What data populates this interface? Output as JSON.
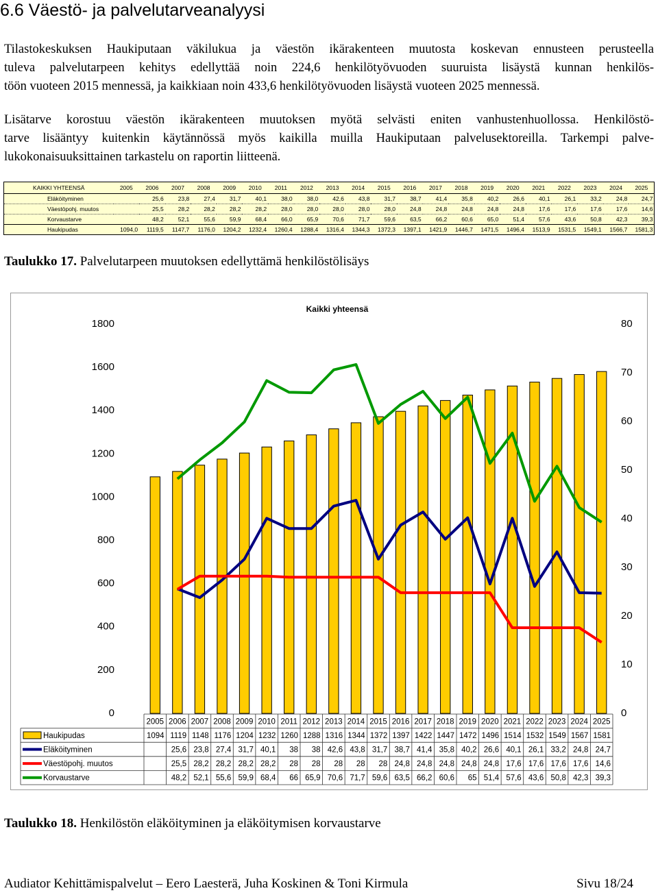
{
  "heading": "6.6 Väestö- ja palvelutarveanalyysi",
  "paragraphs": [
    [
      "Tilastokeskuksen Haukiputaan väkilukua ja väestön ikärakenteen muutosta koskevan ennusteen perusteella",
      "tuleva palvelutarpeen kehitys edellyttää noin 224,6 henkilötyövuoden suuruista lisäystä kunnan henkilös-",
      "töön vuoteen 2015 mennessä, ja kaikkiaan noin 433,6 henkilötyövuoden lisäystä vuoteen 2025 mennessä."
    ],
    [
      "Lisätarve korostuu väestön ikärakenteen muutoksen myötä selvästi eniten vanhustenhuollossa. Henkilöstö-",
      "tarve lisääntyy kuitenkin käytännössä myös kaikilla muilla Haukiputaan palvelusektoreilla. Tarkempi palve-",
      "lukokonaisuuksittainen tarkastelu on raportin liitteenä."
    ]
  ],
  "table": {
    "header": [
      "KAIKKI YHTEENSÄ",
      "2005",
      "2006",
      "2007",
      "2008",
      "2009",
      "2010",
      "2011",
      "2012",
      "2013",
      "2014",
      "2015",
      "2016",
      "2017",
      "2018",
      "2019",
      "2020",
      "2021",
      "2022",
      "2023",
      "2024",
      "2025"
    ],
    "rows": [
      [
        "Eläköityminen",
        null,
        "25,6",
        "23,8",
        "27,4",
        "31,7",
        "40,1",
        "38,0",
        "38,0",
        "42,6",
        "43,8",
        "31,7",
        "38,7",
        "41,4",
        "35,8",
        "40,2",
        "26,6",
        "40,1",
        "26,1",
        "33,2",
        "24,8",
        "24,7"
      ],
      [
        "Väestöpohj. muutos",
        null,
        "25,5",
        "28,2",
        "28,2",
        "28,2",
        "28,2",
        "28,0",
        "28,0",
        "28,0",
        "28,0",
        "28,0",
        "24,8",
        "24,8",
        "24,8",
        "24,8",
        "24,8",
        "17,6",
        "17,6",
        "17,6",
        "17,6",
        "14,6"
      ],
      [
        "Korvaustarve",
        null,
        "48,2",
        "52,1",
        "55,6",
        "59,9",
        "68,4",
        "66,0",
        "65,9",
        "70,6",
        "71,7",
        "59,6",
        "63,5",
        "66,2",
        "60,6",
        "65,0",
        "51,4",
        "57,6",
        "43,6",
        "50,8",
        "42,3",
        "39,3"
      ],
      [
        "Haukipudas",
        "1094,0",
        "1119,5",
        "1147,7",
        "1176,0",
        "1204,2",
        "1232,4",
        "1260,4",
        "1288,4",
        "1316,4",
        "1344,3",
        "1372,3",
        "1397,1",
        "1421,9",
        "1446,7",
        "1471,5",
        "1496,4",
        "1513,9",
        "1531,5",
        "1549,1",
        "1566,7",
        "1581,3"
      ]
    ]
  },
  "caption1": {
    "label": "Taulukko 17.",
    "text": "Palvelutarpeen muutoksen edellyttämä henkilöstölisäys"
  },
  "chart_data": {
    "type": "combo",
    "title": "Kaikki yhteensä",
    "categories": [
      "2005",
      "2006",
      "2007",
      "2008",
      "2009",
      "2010",
      "2011",
      "2012",
      "2013",
      "2014",
      "2015",
      "2016",
      "2017",
      "2018",
      "2019",
      "2020",
      "2021",
      "2022",
      "2023",
      "2024",
      "2025"
    ],
    "series": [
      {
        "name": "Haukipudas",
        "type": "bar",
        "color": "#ffcc00",
        "values": [
          1094,
          1119,
          1148,
          1176,
          1204,
          1232,
          1260,
          1288,
          1316,
          1344,
          1372,
          1397,
          1422,
          1447,
          1472,
          1496,
          1514,
          1532,
          1549,
          1567,
          1581
        ]
      },
      {
        "name": "Eläköityminen",
        "type": "line",
        "axis": "y2",
        "color": "#000080",
        "values": [
          null,
          25.6,
          23.8,
          27.4,
          31.7,
          40.1,
          38,
          38,
          42.6,
          43.8,
          31.7,
          38.7,
          41.4,
          35.8,
          40.2,
          26.6,
          40.1,
          26.1,
          33.2,
          24.8,
          24.7
        ],
        "value_labels": [
          null,
          "25,6",
          "23,8",
          "27,4",
          "31,7",
          "40,1",
          "38",
          "38",
          "42,6",
          "43,8",
          "31,7",
          "38,7",
          "41,4",
          "35,8",
          "40,2",
          "26,6",
          "40,1",
          "26,1",
          "33,2",
          "24,8",
          "24,7"
        ]
      },
      {
        "name": "Väestöpohj. muutos",
        "type": "line",
        "axis": "y2",
        "color": "#ff0000",
        "values": [
          null,
          25.5,
          28.2,
          28.2,
          28.2,
          28.2,
          28,
          28,
          28,
          28,
          28,
          24.8,
          24.8,
          24.8,
          24.8,
          24.8,
          17.6,
          17.6,
          17.6,
          17.6,
          14.6
        ],
        "value_labels": [
          null,
          "25,5",
          "28,2",
          "28,2",
          "28,2",
          "28,2",
          "28",
          "28",
          "28",
          "28",
          "28",
          "24,8",
          "24,8",
          "24,8",
          "24,8",
          "24,8",
          "17,6",
          "17,6",
          "17,6",
          "17,6",
          "14,6"
        ]
      },
      {
        "name": "Korvaustarve",
        "type": "line",
        "axis": "y2",
        "color": "#009900",
        "values": [
          null,
          48.2,
          52.1,
          55.6,
          59.9,
          68.4,
          66,
          65.9,
          70.6,
          71.7,
          59.6,
          63.5,
          66.2,
          60.6,
          65,
          51.4,
          57.6,
          43.6,
          50.8,
          42.3,
          39.3
        ],
        "value_labels": [
          null,
          "48,2",
          "52,1",
          "55,6",
          "59,9",
          "68,4",
          "66",
          "65,9",
          "70,6",
          "71,7",
          "59,6",
          "63,5",
          "66,2",
          "60,6",
          "65",
          "51,4",
          "57,6",
          "43,6",
          "50,8",
          "42,3",
          "39,3"
        ]
      }
    ],
    "ylim": [
      0,
      1800
    ],
    "yticks": [
      0,
      200,
      400,
      600,
      800,
      1000,
      1200,
      1400,
      1600,
      1800
    ],
    "y2lim": [
      0,
      80
    ],
    "y2ticks": [
      0,
      10,
      20,
      30,
      40,
      50,
      60,
      70,
      80
    ],
    "grid": false,
    "legend": "bottom-left",
    "data_table": true
  },
  "caption2": {
    "label": "Taulukko 18.",
    "text": "Henkilöstön eläköityminen ja eläköitymisen korvaustarve"
  },
  "footer": {
    "left": "Audiator Kehittämispalvelut – Eero Laesterä, Juha Koskinen & Toni Kirmula",
    "right": "Sivu 18/24"
  }
}
